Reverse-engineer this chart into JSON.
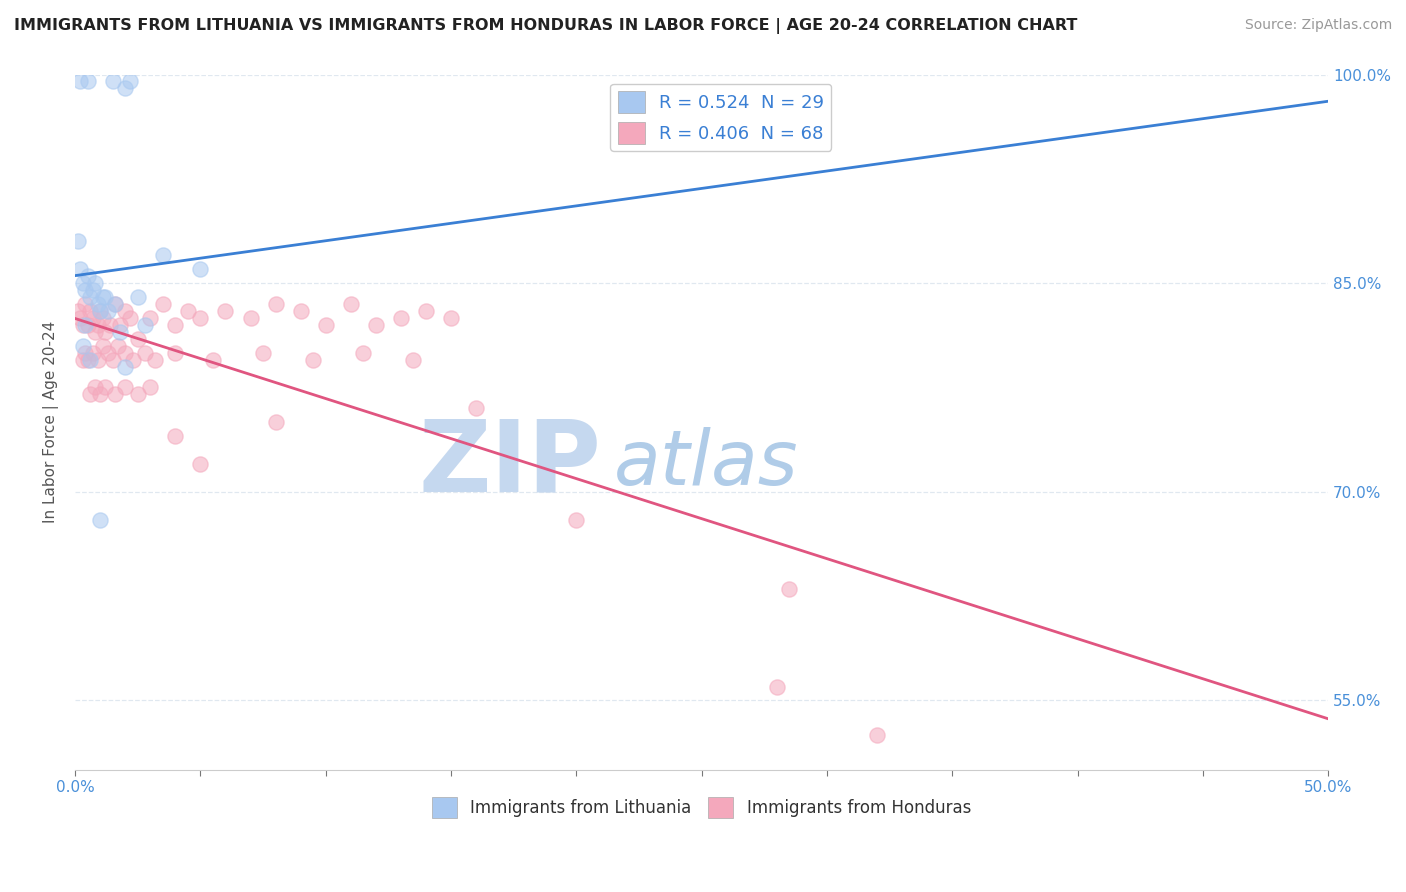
{
  "title": "IMMIGRANTS FROM LITHUANIA VS IMMIGRANTS FROM HONDURAS IN LABOR FORCE | AGE 20-24 CORRELATION CHART",
  "source": "Source: ZipAtlas.com",
  "ylabel_label": "In Labor Force | Age 20-24",
  "xmin": 0.0,
  "xmax": 50.0,
  "ymin": 50.0,
  "ymax": 100.0,
  "yticks": [
    55.0,
    70.0,
    85.0,
    100.0
  ],
  "legend_r1": "R = 0.524  N = 29",
  "legend_r2": "R = 0.406  N = 68",
  "color_lithuania": "#a8c8f0",
  "color_honduras": "#f4a8bc",
  "color_line_lithuania": "#3a7fd4",
  "color_line_honduras": "#e05580",
  "lithuania_x": [
    0.2,
    0.5,
    1.5,
    2.0,
    2.2,
    0.1,
    0.2,
    0.3,
    0.4,
    0.5,
    0.6,
    0.7,
    0.8,
    0.9,
    1.0,
    1.1,
    1.2,
    1.3,
    1.6,
    2.5,
    3.5,
    5.0,
    2.0,
    0.3,
    0.4,
    1.8,
    0.6,
    2.8,
    1.0
  ],
  "lithuania_y": [
    99.5,
    99.5,
    99.5,
    99.0,
    99.5,
    88.0,
    86.0,
    85.0,
    84.5,
    85.5,
    84.0,
    84.5,
    85.0,
    83.5,
    83.0,
    84.0,
    84.0,
    83.0,
    83.5,
    84.0,
    87.0,
    86.0,
    79.0,
    80.5,
    82.0,
    81.5,
    79.5,
    82.0,
    68.0
  ],
  "honduras_x": [
    0.1,
    0.2,
    0.3,
    0.4,
    0.5,
    0.6,
    0.7,
    0.8,
    0.9,
    1.0,
    1.1,
    1.2,
    1.4,
    1.6,
    1.8,
    2.0,
    2.2,
    2.5,
    3.0,
    3.5,
    4.0,
    4.5,
    5.0,
    6.0,
    7.0,
    8.0,
    9.0,
    10.0,
    11.0,
    12.0,
    13.0,
    14.0,
    15.0,
    0.3,
    0.4,
    0.5,
    0.7,
    0.9,
    1.1,
    1.3,
    1.5,
    1.7,
    2.0,
    2.3,
    2.8,
    3.2,
    4.0,
    5.5,
    7.5,
    9.5,
    11.5,
    13.5,
    0.6,
    0.8,
    1.0,
    1.2,
    1.6,
    2.0,
    2.5,
    3.0,
    4.0,
    5.0,
    8.0,
    16.0,
    20.0,
    28.5,
    28.0,
    32.0
  ],
  "honduras_y": [
    83.0,
    82.5,
    82.0,
    83.5,
    82.0,
    83.0,
    82.5,
    81.5,
    82.0,
    83.0,
    82.5,
    81.5,
    82.0,
    83.5,
    82.0,
    83.0,
    82.5,
    81.0,
    82.5,
    83.5,
    82.0,
    83.0,
    82.5,
    83.0,
    82.5,
    83.5,
    83.0,
    82.0,
    83.5,
    82.0,
    82.5,
    83.0,
    82.5,
    79.5,
    80.0,
    79.5,
    80.0,
    79.5,
    80.5,
    80.0,
    79.5,
    80.5,
    80.0,
    79.5,
    80.0,
    79.5,
    80.0,
    79.5,
    80.0,
    79.5,
    80.0,
    79.5,
    77.0,
    77.5,
    77.0,
    77.5,
    77.0,
    77.5,
    77.0,
    77.5,
    74.0,
    72.0,
    75.0,
    76.0,
    68.0,
    63.0,
    56.0,
    52.5
  ],
  "background_color": "#ffffff",
  "grid_color": "#e0e8f0",
  "watermark_zip": "ZIP",
  "watermark_atlas": "atlas",
  "watermark_color_zip": "#c5d8ef",
  "watermark_color_atlas": "#b0cce8",
  "marker_size_lith": 120,
  "marker_size_hond": 120,
  "marker_alpha": 0.55,
  "line_width": 2.0,
  "title_fontsize": 11.5,
  "source_fontsize": 10,
  "tick_fontsize": 11,
  "legend_fontsize": 13
}
